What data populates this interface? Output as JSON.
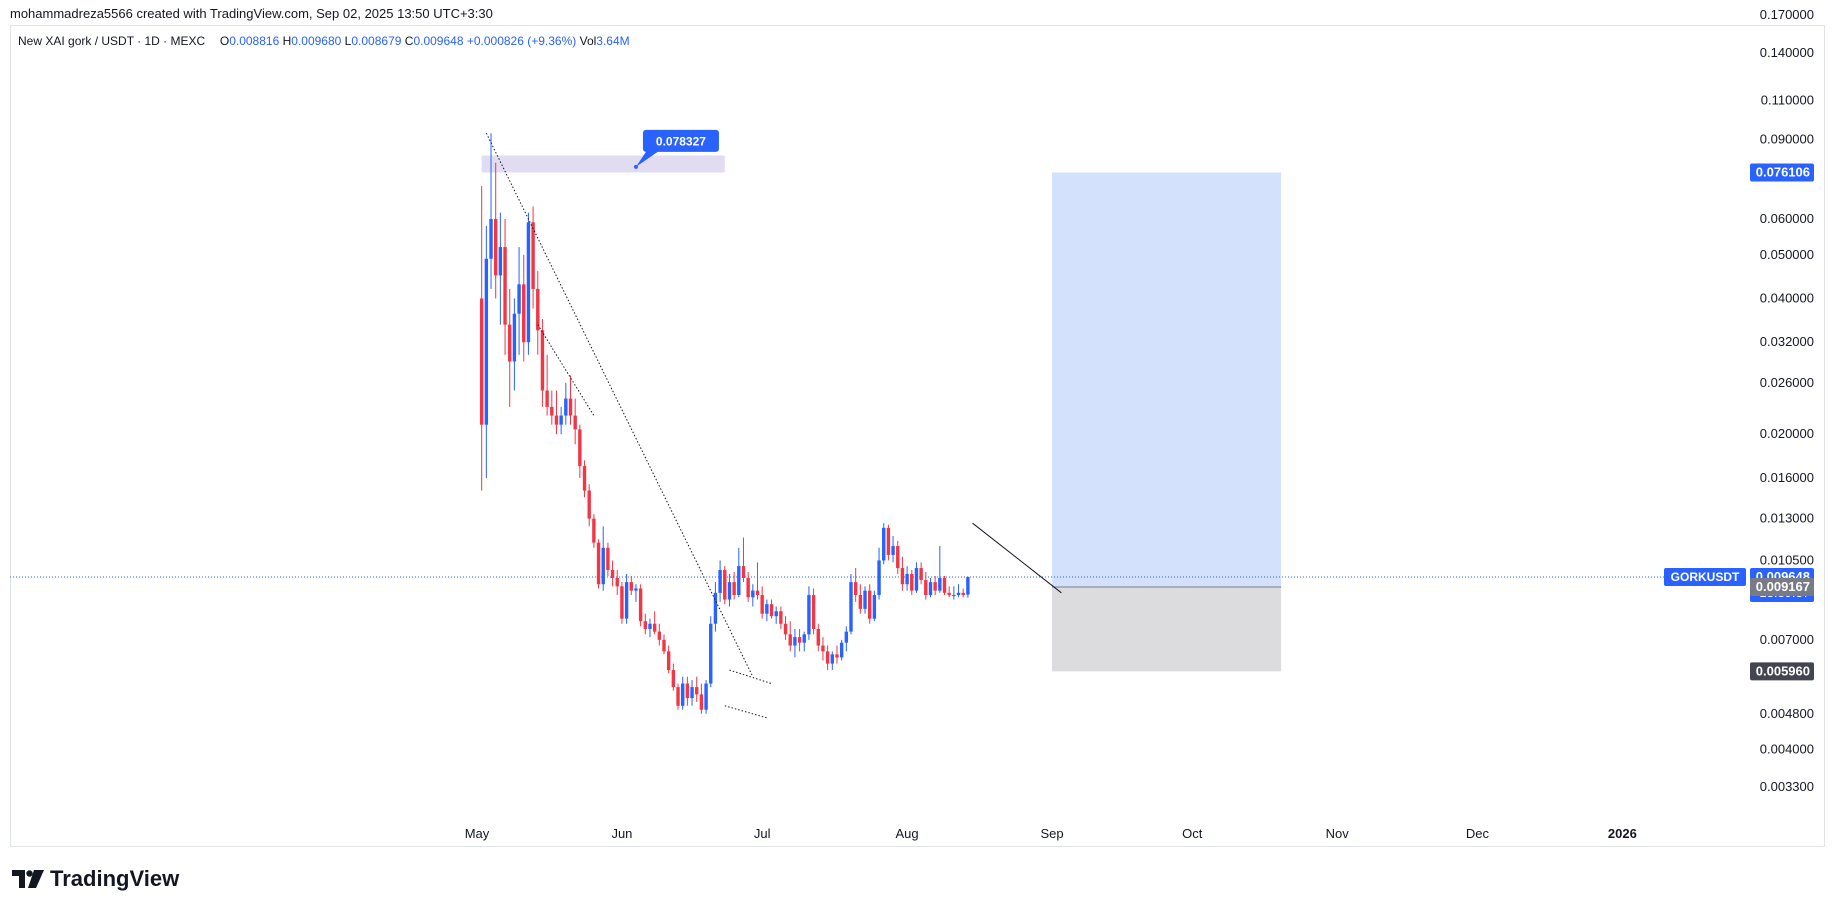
{
  "caption": "mohammadreza5566 created with TradingView.com, Sep 02, 2025 13:50 UTC+3:30",
  "legend": {
    "symbol": "New XAI gork / USDT · 1D · MEXC",
    "o_label": "O",
    "o_value": "0.008816",
    "h_label": "H",
    "h_value": "0.009680",
    "l_label": "L",
    "l_value": "0.008679",
    "c_label": "C",
    "c_value": "0.009648",
    "change": "+0.000826 (+9.36%)",
    "vol_label": "Vol",
    "vol_value": "3.64M"
  },
  "brand": "TradingView",
  "colors": {
    "up": "#2962ff",
    "down": "#f23645",
    "target_zone": "#c8d9fc",
    "stop_zone": "#dcdcdf",
    "resistance_zone": "#e2dcf3",
    "accent": "#2962ff"
  },
  "chart_data": {
    "type": "candlestick",
    "scale": "log",
    "ylim": [
      0.003,
      0.175
    ],
    "y_ticks": [
      "0.170000",
      "0.140000",
      "0.110000",
      "0.090000",
      "0.060000",
      "0.050000",
      "0.040000",
      "0.032000",
      "0.026000",
      "0.020000",
      "0.016000",
      "0.013000",
      "0.010500",
      "0.007000",
      "0.004800",
      "0.004000",
      "0.003300"
    ],
    "x_ticks": [
      {
        "date": "2025-05-01",
        "label": "May"
      },
      {
        "date": "2025-06-01",
        "label": "Jun"
      },
      {
        "date": "2025-07-01",
        "label": "Jul"
      },
      {
        "date": "2025-08-01",
        "label": "Aug"
      },
      {
        "date": "2025-09-01",
        "label": "Sep"
      },
      {
        "date": "2025-10-01",
        "label": "Oct"
      },
      {
        "date": "2025-11-01",
        "label": "Nov"
      },
      {
        "date": "2025-12-01",
        "label": "Dec"
      },
      {
        "date": "2026-01-01",
        "label": "2026"
      }
    ],
    "first_date": "2025-05-01",
    "candles": [
      {
        "o": 0.04,
        "h": 0.071,
        "l": 0.015,
        "c": 0.021
      },
      {
        "o": 0.021,
        "h": 0.058,
        "l": 0.016,
        "c": 0.049
      },
      {
        "o": 0.049,
        "h": 0.093,
        "l": 0.042,
        "c": 0.06
      },
      {
        "o": 0.06,
        "h": 0.08,
        "l": 0.04,
        "c": 0.045
      },
      {
        "o": 0.045,
        "h": 0.062,
        "l": 0.035,
        "c": 0.052
      },
      {
        "o": 0.052,
        "h": 0.06,
        "l": 0.03,
        "c": 0.035
      },
      {
        "o": 0.035,
        "h": 0.042,
        "l": 0.023,
        "c": 0.029
      },
      {
        "o": 0.029,
        "h": 0.04,
        "l": 0.025,
        "c": 0.037
      },
      {
        "o": 0.037,
        "h": 0.052,
        "l": 0.03,
        "c": 0.043
      },
      {
        "o": 0.043,
        "h": 0.05,
        "l": 0.029,
        "c": 0.032
      },
      {
        "o": 0.032,
        "h": 0.062,
        "l": 0.03,
        "c": 0.059
      },
      {
        "o": 0.059,
        "h": 0.064,
        "l": 0.038,
        "c": 0.042
      },
      {
        "o": 0.042,
        "h": 0.046,
        "l": 0.03,
        "c": 0.034
      },
      {
        "o": 0.034,
        "h": 0.036,
        "l": 0.023,
        "c": 0.025
      },
      {
        "o": 0.025,
        "h": 0.03,
        "l": 0.022,
        "c": 0.023
      },
      {
        "o": 0.023,
        "h": 0.025,
        "l": 0.021,
        "c": 0.022
      },
      {
        "o": 0.022,
        "h": 0.025,
        "l": 0.02,
        "c": 0.021
      },
      {
        "o": 0.021,
        "h": 0.023,
        "l": 0.02,
        "c": 0.022
      },
      {
        "o": 0.022,
        "h": 0.026,
        "l": 0.021,
        "c": 0.024
      },
      {
        "o": 0.024,
        "h": 0.027,
        "l": 0.021,
        "c": 0.022
      },
      {
        "o": 0.022,
        "h": 0.024,
        "l": 0.019,
        "c": 0.0205
      },
      {
        "o": 0.0205,
        "h": 0.021,
        "l": 0.016,
        "c": 0.017
      },
      {
        "o": 0.017,
        "h": 0.0175,
        "l": 0.0145,
        "c": 0.015
      },
      {
        "o": 0.015,
        "h": 0.0155,
        "l": 0.0125,
        "c": 0.013
      },
      {
        "o": 0.013,
        "h": 0.0133,
        "l": 0.0112,
        "c": 0.0115
      },
      {
        "o": 0.0115,
        "h": 0.0117,
        "l": 0.0091,
        "c": 0.0093
      },
      {
        "o": 0.0093,
        "h": 0.0125,
        "l": 0.009,
        "c": 0.0112
      },
      {
        "o": 0.0112,
        "h": 0.0115,
        "l": 0.0097,
        "c": 0.01
      },
      {
        "o": 0.01,
        "h": 0.0105,
        "l": 0.0092,
        "c": 0.0096
      },
      {
        "o": 0.0096,
        "h": 0.01,
        "l": 0.0088,
        "c": 0.0092
      },
      {
        "o": 0.0092,
        "h": 0.0094,
        "l": 0.0076,
        "c": 0.0078
      },
      {
        "o": 0.0078,
        "h": 0.0098,
        "l": 0.0076,
        "c": 0.0094
      },
      {
        "o": 0.0094,
        "h": 0.0097,
        "l": 0.0088,
        "c": 0.009
      },
      {
        "o": 0.009,
        "h": 0.0093,
        "l": 0.0085,
        "c": 0.0091
      },
      {
        "o": 0.0091,
        "h": 0.0093,
        "l": 0.0075,
        "c": 0.0077
      },
      {
        "o": 0.0077,
        "h": 0.008,
        "l": 0.0072,
        "c": 0.0074
      },
      {
        "o": 0.0074,
        "h": 0.0078,
        "l": 0.0071,
        "c": 0.0076
      },
      {
        "o": 0.0076,
        "h": 0.0081,
        "l": 0.0072,
        "c": 0.0073
      },
      {
        "o": 0.0073,
        "h": 0.0076,
        "l": 0.0068,
        "c": 0.007
      },
      {
        "o": 0.007,
        "h": 0.0072,
        "l": 0.0065,
        "c": 0.0066
      },
      {
        "o": 0.0066,
        "h": 0.0068,
        "l": 0.0059,
        "c": 0.006
      },
      {
        "o": 0.006,
        "h": 0.0062,
        "l": 0.0054,
        "c": 0.0055
      },
      {
        "o": 0.0055,
        "h": 0.0056,
        "l": 0.0049,
        "c": 0.005
      },
      {
        "o": 0.005,
        "h": 0.0058,
        "l": 0.0049,
        "c": 0.0056
      },
      {
        "o": 0.0056,
        "h": 0.0058,
        "l": 0.005,
        "c": 0.0052
      },
      {
        "o": 0.0052,
        "h": 0.0057,
        "l": 0.005,
        "c": 0.0055
      },
      {
        "o": 0.0055,
        "h": 0.0058,
        "l": 0.0051,
        "c": 0.0053
      },
      {
        "o": 0.0053,
        "h": 0.0056,
        "l": 0.0048,
        "c": 0.0049
      },
      {
        "o": 0.0049,
        "h": 0.0057,
        "l": 0.0048,
        "c": 0.0056
      },
      {
        "o": 0.0056,
        "h": 0.0079,
        "l": 0.0055,
        "c": 0.0076
      },
      {
        "o": 0.0076,
        "h": 0.0094,
        "l": 0.0073,
        "c": 0.0089
      },
      {
        "o": 0.0089,
        "h": 0.0105,
        "l": 0.0085,
        "c": 0.01
      },
      {
        "o": 0.01,
        "h": 0.0102,
        "l": 0.0084,
        "c": 0.0086
      },
      {
        "o": 0.0086,
        "h": 0.0098,
        "l": 0.0083,
        "c": 0.0094
      },
      {
        "o": 0.0094,
        "h": 0.0099,
        "l": 0.0086,
        "c": 0.0088
      },
      {
        "o": 0.0088,
        "h": 0.0112,
        "l": 0.0087,
        "c": 0.0102
      },
      {
        "o": 0.0102,
        "h": 0.0118,
        "l": 0.0094,
        "c": 0.0096
      },
      {
        "o": 0.0096,
        "h": 0.0099,
        "l": 0.0085,
        "c": 0.0087
      },
      {
        "o": 0.0087,
        "h": 0.0093,
        "l": 0.0083,
        "c": 0.009
      },
      {
        "o": 0.009,
        "h": 0.0104,
        "l": 0.0086,
        "c": 0.0088
      },
      {
        "o": 0.0088,
        "h": 0.0092,
        "l": 0.0078,
        "c": 0.008
      },
      {
        "o": 0.008,
        "h": 0.0086,
        "l": 0.0077,
        "c": 0.0084
      },
      {
        "o": 0.0084,
        "h": 0.0086,
        "l": 0.0078,
        "c": 0.0079
      },
      {
        "o": 0.0079,
        "h": 0.0083,
        "l": 0.0076,
        "c": 0.0081
      },
      {
        "o": 0.0081,
        "h": 0.0083,
        "l": 0.0074,
        "c": 0.0076
      },
      {
        "o": 0.0076,
        "h": 0.0079,
        "l": 0.007,
        "c": 0.0072
      },
      {
        "o": 0.0072,
        "h": 0.0077,
        "l": 0.0066,
        "c": 0.0068
      },
      {
        "o": 0.0068,
        "h": 0.0074,
        "l": 0.0064,
        "c": 0.0071
      },
      {
        "o": 0.0071,
        "h": 0.0074,
        "l": 0.0066,
        "c": 0.0069
      },
      {
        "o": 0.0069,
        "h": 0.0073,
        "l": 0.0066,
        "c": 0.0072
      },
      {
        "o": 0.0072,
        "h": 0.0092,
        "l": 0.007,
        "c": 0.0088
      },
      {
        "o": 0.0088,
        "h": 0.0091,
        "l": 0.0072,
        "c": 0.0074
      },
      {
        "o": 0.0074,
        "h": 0.0076,
        "l": 0.0066,
        "c": 0.0068
      },
      {
        "o": 0.0068,
        "h": 0.0071,
        "l": 0.0063,
        "c": 0.0066
      },
      {
        "o": 0.0066,
        "h": 0.0068,
        "l": 0.006,
        "c": 0.0062
      },
      {
        "o": 0.0062,
        "h": 0.0066,
        "l": 0.006,
        "c": 0.0065
      },
      {
        "o": 0.0065,
        "h": 0.0068,
        "l": 0.0062,
        "c": 0.0064
      },
      {
        "o": 0.0064,
        "h": 0.007,
        "l": 0.0063,
        "c": 0.0069
      },
      {
        "o": 0.0069,
        "h": 0.0075,
        "l": 0.0066,
        "c": 0.0073
      },
      {
        "o": 0.0073,
        "h": 0.0098,
        "l": 0.0072,
        "c": 0.0094
      },
      {
        "o": 0.0094,
        "h": 0.0101,
        "l": 0.0085,
        "c": 0.0088
      },
      {
        "o": 0.0088,
        "h": 0.0093,
        "l": 0.008,
        "c": 0.0082
      },
      {
        "o": 0.0082,
        "h": 0.0092,
        "l": 0.008,
        "c": 0.009
      },
      {
        "o": 0.009,
        "h": 0.0093,
        "l": 0.0076,
        "c": 0.0078
      },
      {
        "o": 0.0078,
        "h": 0.009,
        "l": 0.0077,
        "c": 0.0088
      },
      {
        "o": 0.0088,
        "h": 0.0112,
        "l": 0.0086,
        "c": 0.0105
      },
      {
        "o": 0.0105,
        "h": 0.0127,
        "l": 0.0103,
        "c": 0.0124
      },
      {
        "o": 0.0124,
        "h": 0.0126,
        "l": 0.0105,
        "c": 0.0108
      },
      {
        "o": 0.0108,
        "h": 0.0119,
        "l": 0.0104,
        "c": 0.0113
      },
      {
        "o": 0.0113,
        "h": 0.0116,
        "l": 0.0098,
        "c": 0.0101
      },
      {
        "o": 0.0101,
        "h": 0.0107,
        "l": 0.009,
        "c": 0.0093
      },
      {
        "o": 0.0093,
        "h": 0.0102,
        "l": 0.009,
        "c": 0.0098
      },
      {
        "o": 0.0098,
        "h": 0.01,
        "l": 0.0088,
        "c": 0.009
      },
      {
        "o": 0.009,
        "h": 0.0104,
        "l": 0.0089,
        "c": 0.0101
      },
      {
        "o": 0.0101,
        "h": 0.0104,
        "l": 0.0093,
        "c": 0.0095
      },
      {
        "o": 0.0095,
        "h": 0.0099,
        "l": 0.0086,
        "c": 0.0088
      },
      {
        "o": 0.0088,
        "h": 0.0096,
        "l": 0.0087,
        "c": 0.0094
      },
      {
        "o": 0.0094,
        "h": 0.0097,
        "l": 0.0088,
        "c": 0.009
      },
      {
        "o": 0.009,
        "h": 0.0113,
        "l": 0.0089,
        "c": 0.0096
      },
      {
        "o": 0.0096,
        "h": 0.0097,
        "l": 0.0088,
        "c": 0.0089
      },
      {
        "o": 0.0089,
        "h": 0.0092,
        "l": 0.0087,
        "c": 0.0088
      },
      {
        "o": 0.0088,
        "h": 0.0092,
        "l": 0.0086,
        "c": 0.0088
      },
      {
        "o": 0.0088,
        "h": 0.0093,
        "l": 0.0087,
        "c": 0.0089
      },
      {
        "o": 0.0089,
        "h": 0.0091,
        "l": 0.0087,
        "c": 0.0088
      },
      {
        "o": 0.008816,
        "h": 0.00968,
        "l": 0.008679,
        "c": 0.009648
      }
    ],
    "position": {
      "type": "long",
      "start": "2025-09-01",
      "end": "2025-10-20",
      "entry": 0.009167,
      "target": 0.076106,
      "stop": 0.00596
    },
    "resistance_zone": {
      "start": "2025-05-02",
      "end": "2025-06-23",
      "low": 0.076106,
      "high": 0.083
    },
    "callout": {
      "label": "0.078327",
      "value": 0.078327,
      "anchor_date": "2025-06-04"
    },
    "trendlines": [
      {
        "from": [
          "2025-05-03",
          0.093
        ],
        "to": [
          "2025-06-29",
          0.0058
        ],
        "style": "dotted"
      },
      {
        "from": [
          "2025-05-14",
          0.035
        ],
        "to": [
          "2025-05-26",
          0.022
        ],
        "style": "dotted"
      },
      {
        "from": [
          "2025-06-23",
          0.005
        ],
        "to": [
          "2025-07-02",
          0.0047
        ],
        "style": "dotted"
      },
      {
        "from": [
          "2025-06-24",
          0.006
        ],
        "to": [
          "2025-07-03",
          0.0056
        ],
        "style": "dotted"
      },
      {
        "from": [
          "2025-08-15",
          0.0127
        ],
        "to": [
          "2025-09-03",
          0.0089
        ],
        "style": "solid"
      }
    ],
    "price_labels": [
      {
        "value": 0.076106,
        "text": "0.076106",
        "bg": "#2962ff",
        "color": "#ffffff"
      },
      {
        "value": 0.009648,
        "text": "0.009648",
        "sub": "13:39:37",
        "symbol": "GORKUSDT",
        "bg": "#2962ff",
        "color": "#ffffff"
      },
      {
        "value": 0.009167,
        "text": "0.009167",
        "bg": "#787b86",
        "color": "#ffffff"
      },
      {
        "value": 0.00596,
        "text": "0.005960",
        "bg": "#434651",
        "color": "#ffffff"
      }
    ],
    "last_price": 0.009648
  }
}
